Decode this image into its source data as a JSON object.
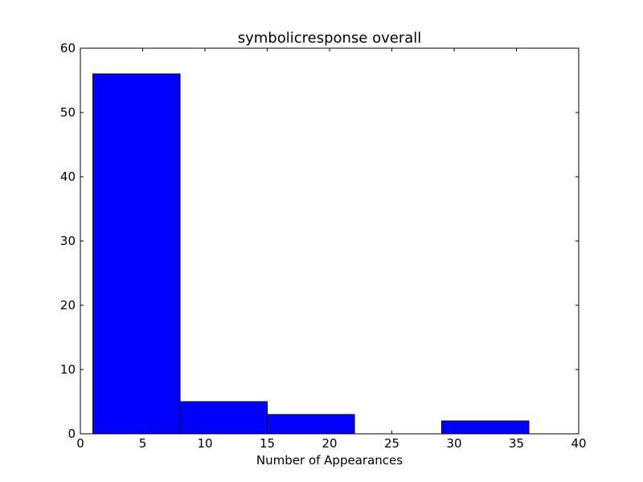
{
  "chart_data": {
    "type": "bar",
    "title": "symbolicresponse overall",
    "xlabel": "Number of Appearances",
    "ylabel": "",
    "xlim": [
      0,
      40
    ],
    "ylim": [
      0,
      60
    ],
    "xticks": [
      0,
      5,
      10,
      15,
      20,
      25,
      30,
      35,
      40
    ],
    "yticks": [
      0,
      10,
      20,
      30,
      40,
      50,
      60
    ],
    "bins": [
      {
        "x0": 1,
        "x1": 8,
        "value": 56
      },
      {
        "x0": 8,
        "x1": 15,
        "value": 5
      },
      {
        "x0": 15,
        "x1": 22,
        "value": 3
      },
      {
        "x0": 22,
        "x1": 29,
        "value": 0
      },
      {
        "x0": 29,
        "x1": 36,
        "value": 2
      }
    ],
    "bar_color": "#0000ff",
    "edge_color": "#000000",
    "grid": false,
    "legend": "none"
  }
}
